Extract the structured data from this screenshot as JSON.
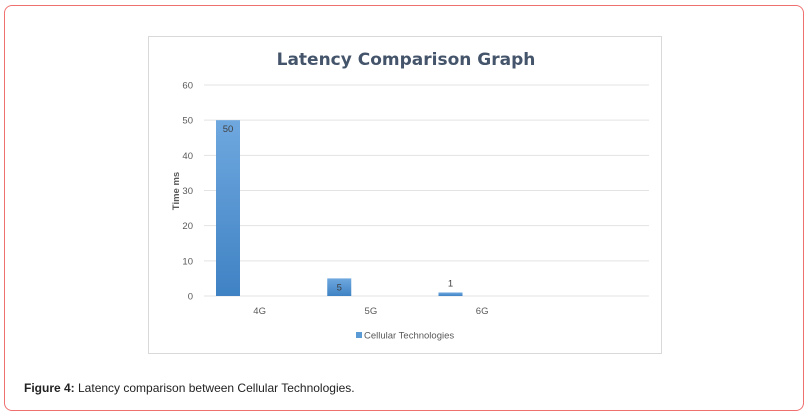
{
  "chart_data": {
    "type": "bar",
    "title": "Latency Comparison Graph",
    "xlabel": "",
    "ylabel": "Time ms",
    "categories": [
      "4G",
      "5G",
      "6G"
    ],
    "series": [
      {
        "name": "Cellular Technologies",
        "values": [
          50,
          5,
          1
        ],
        "color": "#5b9bd5"
      }
    ],
    "data_labels": [
      "50",
      "5",
      "1"
    ],
    "ylim": [
      0,
      60
    ],
    "yticks": [
      0,
      10,
      20,
      30,
      40,
      50,
      60
    ],
    "grid": true,
    "legend": "bottom"
  },
  "caption": {
    "label": "Figure 4:",
    "text": " Latency comparison between Cellular Technologies."
  }
}
